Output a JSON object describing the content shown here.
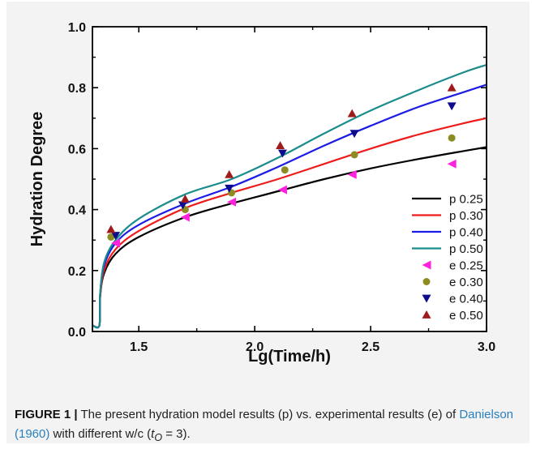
{
  "chart_data": {
    "type": "line",
    "title": "",
    "xlabel": "Lg(Time/h)",
    "ylabel": "Hydration Degree",
    "xlim": [
      1.3,
      3.0
    ],
    "ylim": [
      0.0,
      1.0
    ],
    "x_ticks": [
      "1.5",
      "2.0",
      "2.5",
      "3.0"
    ],
    "y_ticks": [
      "0.0",
      "0.2",
      "0.4",
      "0.6",
      "0.8",
      "1.0"
    ],
    "legend_position": "bottom-right",
    "series": [
      {
        "name": "p 0.25",
        "kind": "line",
        "color": "#000000",
        "x": [
          1.3,
          1.33,
          1.333,
          1.35,
          1.4,
          1.5,
          1.7,
          1.9,
          2.1,
          2.3,
          2.5,
          2.7,
          2.9,
          3.0
        ],
        "y": [
          0.02,
          0.02,
          0.11,
          0.19,
          0.255,
          0.31,
          0.375,
          0.42,
          0.46,
          0.5,
          0.535,
          0.565,
          0.592,
          0.605
        ]
      },
      {
        "name": "p 0.30",
        "kind": "line",
        "color": "#ee1c1c",
        "x": [
          1.3,
          1.33,
          1.333,
          1.35,
          1.4,
          1.5,
          1.7,
          1.9,
          2.1,
          2.3,
          2.5,
          2.7,
          2.9,
          3.0
        ],
        "y": [
          0.02,
          0.02,
          0.11,
          0.2,
          0.27,
          0.33,
          0.405,
          0.455,
          0.5,
          0.55,
          0.6,
          0.645,
          0.683,
          0.7
        ]
      },
      {
        "name": "p 0.40",
        "kind": "line",
        "color": "#1c1ce6",
        "x": [
          1.3,
          1.33,
          1.333,
          1.35,
          1.4,
          1.5,
          1.7,
          1.9,
          2.1,
          2.3,
          2.5,
          2.7,
          2.9,
          3.0
        ],
        "y": [
          0.02,
          0.02,
          0.12,
          0.215,
          0.29,
          0.35,
          0.42,
          0.475,
          0.54,
          0.61,
          0.675,
          0.735,
          0.785,
          0.81
        ]
      },
      {
        "name": "p 0.50",
        "kind": "line",
        "color": "#1a8c8c",
        "x": [
          1.3,
          1.33,
          1.333,
          1.35,
          1.4,
          1.5,
          1.7,
          1.9,
          2.1,
          2.3,
          2.5,
          2.7,
          2.9,
          3.0
        ],
        "y": [
          0.02,
          0.02,
          0.12,
          0.225,
          0.3,
          0.37,
          0.45,
          0.5,
          0.57,
          0.65,
          0.725,
          0.79,
          0.85,
          0.875
        ]
      },
      {
        "name": "e 0.25",
        "kind": "marker",
        "marker": "triangle-left",
        "color": "#ff22dd",
        "x": [
          1.4,
          1.7,
          1.9,
          2.12,
          2.42,
          2.85
        ],
        "y": [
          0.29,
          0.375,
          0.425,
          0.465,
          0.515,
          0.55
        ]
      },
      {
        "name": "e 0.30",
        "kind": "marker",
        "marker": "circle",
        "color": "#8c8c22",
        "x": [
          1.38,
          1.7,
          1.9,
          2.13,
          2.43,
          2.85
        ],
        "y": [
          0.31,
          0.4,
          0.455,
          0.53,
          0.58,
          0.635
        ]
      },
      {
        "name": "e 0.40",
        "kind": "marker",
        "marker": "triangle-down",
        "color": "#0c0c8c",
        "x": [
          1.4,
          1.69,
          1.89,
          2.12,
          2.43,
          2.85
        ],
        "y": [
          0.315,
          0.415,
          0.47,
          0.585,
          0.65,
          0.74
        ]
      },
      {
        "name": "e 0.50",
        "kind": "marker",
        "marker": "triangle-up",
        "color": "#a01a1a",
        "x": [
          1.38,
          1.7,
          1.89,
          2.11,
          2.42,
          2.85
        ],
        "y": [
          0.335,
          0.435,
          0.515,
          0.61,
          0.715,
          0.8
        ]
      }
    ]
  },
  "caption": {
    "label": "FIGURE 1 |",
    "text_1": " The present hydration model results (p) vs. experimental results (e) of ",
    "citation": "Danielson (1960)",
    "text_2": " with different w/c (",
    "t_var": "t",
    "t_sub": "O",
    "text_3": " = 3)."
  }
}
